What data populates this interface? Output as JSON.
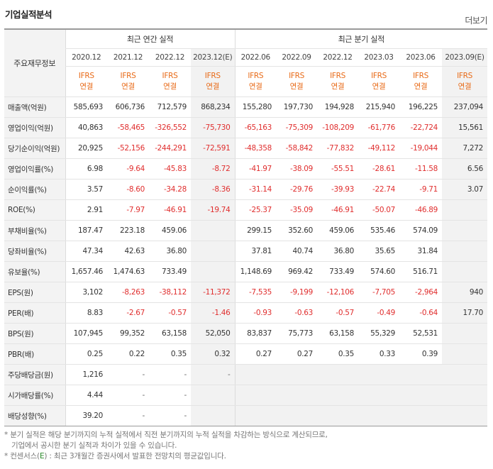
{
  "section_title": "기업실적분석",
  "more_link": "더보기",
  "header": {
    "corner": "주요재무정보",
    "annual_group": "최근 연간 실적",
    "quarterly_group": "최근 분기 실적",
    "annual_periods": [
      "2020.12",
      "2021.12",
      "2022.12",
      "2023.12(E)"
    ],
    "quarterly_periods": [
      "2022.06",
      "2022.09",
      "2022.12",
      "2023.03",
      "2023.06",
      "2023.09(E)"
    ],
    "accounting_line1": "IFRS",
    "accounting_line2": "연결"
  },
  "rows": [
    {
      "label": "매출액(억원)",
      "values": [
        "585,693",
        "606,736",
        "712,579",
        "868,234",
        "155,280",
        "197,730",
        "194,928",
        "215,940",
        "196,225",
        "237,094"
      ]
    },
    {
      "label": "영업이익(억원)",
      "values": [
        "40,863",
        "-58,465",
        "-326,552",
        "-75,730",
        "-65,163",
        "-75,309",
        "-108,209",
        "-61,776",
        "-22,724",
        "15,561"
      ]
    },
    {
      "label": "당기순이익(억원)",
      "values": [
        "20,925",
        "-52,156",
        "-244,291",
        "-72,591",
        "-48,358",
        "-58,842",
        "-77,832",
        "-49,112",
        "-19,044",
        "7,272"
      ]
    },
    {
      "label": "영업이익률(%)",
      "values": [
        "6.98",
        "-9.64",
        "-45.83",
        "-8.72",
        "-41.97",
        "-38.09",
        "-55.51",
        "-28.61",
        "-11.58",
        "6.56"
      ]
    },
    {
      "label": "순이익률(%)",
      "values": [
        "3.57",
        "-8.60",
        "-34.28",
        "-8.36",
        "-31.14",
        "-29.76",
        "-39.93",
        "-22.74",
        "-9.71",
        "3.07"
      ]
    },
    {
      "label": "ROE(%)",
      "values": [
        "2.91",
        "-7.97",
        "-46.91",
        "-19.74",
        "-25.37",
        "-35.09",
        "-46.91",
        "-50.07",
        "-46.89",
        ""
      ]
    },
    {
      "label": "부채비율(%)",
      "values": [
        "187.47",
        "223.18",
        "459.06",
        "",
        "299.15",
        "352.60",
        "459.06",
        "535.46",
        "574.09",
        ""
      ]
    },
    {
      "label": "당좌비율(%)",
      "values": [
        "47.34",
        "42.63",
        "36.80",
        "",
        "37.81",
        "40.74",
        "36.80",
        "35.65",
        "31.84",
        ""
      ]
    },
    {
      "label": "유보율(%)",
      "values": [
        "1,657.46",
        "1,474.63",
        "733.49",
        "",
        "1,148.69",
        "969.42",
        "733.49",
        "574.60",
        "516.71",
        ""
      ]
    },
    {
      "label": "EPS(원)",
      "values": [
        "3,102",
        "-8,263",
        "-38,112",
        "-11,372",
        "-7,535",
        "-9,199",
        "-12,106",
        "-7,705",
        "-2,964",
        "940"
      ]
    },
    {
      "label": "PER(배)",
      "values": [
        "8.83",
        "-2.67",
        "-0.57",
        "-1.46",
        "-0.93",
        "-0.63",
        "-0.57",
        "-0.49",
        "-0.64",
        "17.70"
      ]
    },
    {
      "label": "BPS(원)",
      "values": [
        "107,945",
        "99,352",
        "63,158",
        "52,050",
        "83,837",
        "75,773",
        "63,158",
        "55,329",
        "52,531",
        ""
      ]
    },
    {
      "label": "PBR(배)",
      "values": [
        "0.25",
        "0.22",
        "0.35",
        "0.32",
        "0.27",
        "0.27",
        "0.35",
        "0.33",
        "0.39",
        ""
      ]
    },
    {
      "label": "주당배당금(원)",
      "values": [
        "1,216",
        "-",
        "-",
        "-",
        "",
        "",
        "",
        "",
        "",
        ""
      ]
    },
    {
      "label": "시가배당률(%)",
      "values": [
        "4.44",
        "-",
        "-",
        "",
        "",
        "",
        "",
        "",
        "",
        ""
      ]
    },
    {
      "label": "배당성향(%)",
      "values": [
        "39.20",
        "-",
        "-",
        "",
        "",
        "",
        "",
        "",
        "",
        ""
      ]
    }
  ],
  "notes": {
    "line1": "* 분기 실적은 해당 분기까지의 누적 실적에서 직전 분기까지의 누적 실적을 차감하는 방식으로 계산되므로,",
    "line2": "기업에서 공시한 분기 실적과 차이가 있을 수 있습니다.",
    "line3_prefix": "* 컨센서스(",
    "line3_mark": "E",
    "line3_suffix": ") : 최근 3개월간 증권사에서 발표한 전망치의 평균값입니다."
  },
  "colors": {
    "negative": "#e02e2e",
    "accounting": "#e86a17",
    "estimate_bg": "#f2f2f2"
  }
}
